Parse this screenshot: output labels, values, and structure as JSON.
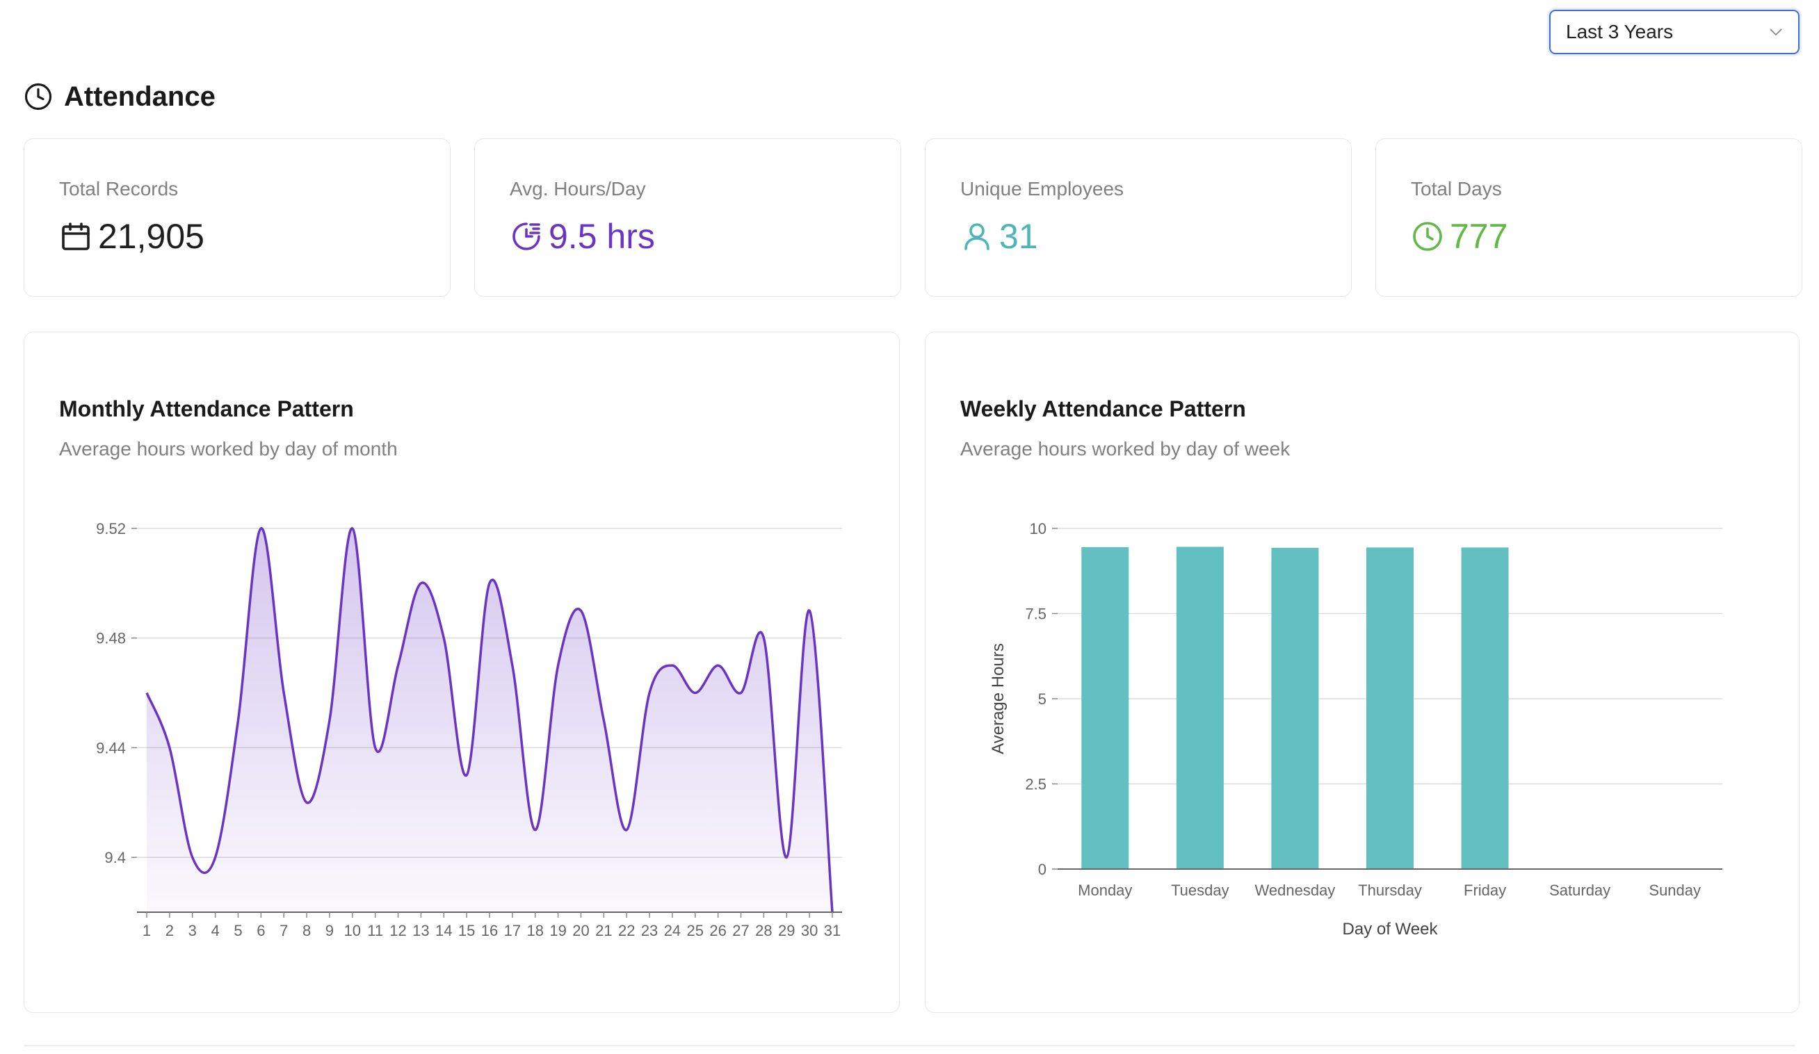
{
  "filter": {
    "selected": "Last 3 Years"
  },
  "page": {
    "title": "Attendance"
  },
  "stats": [
    {
      "label": "Total Records",
      "value": "21,905",
      "icon": "calendar-icon",
      "color": "#1f1f1f"
    },
    {
      "label": "Avg. Hours/Day",
      "value": "9.5 hrs",
      "icon": "clock-chart-icon",
      "color": "#6a35c2"
    },
    {
      "label": "Unique Employees",
      "value": "31",
      "icon": "user-icon",
      "color": "#4bb5b8"
    },
    {
      "label": "Total Days",
      "value": "777",
      "icon": "clock-icon",
      "color": "#63b84a"
    }
  ],
  "monthly": {
    "title": "Monthly Attendance Pattern",
    "subtitle": "Average hours worked by day of month",
    "chart_data": {
      "type": "area",
      "x": [
        1,
        2,
        3,
        4,
        5,
        6,
        7,
        8,
        9,
        10,
        11,
        12,
        13,
        14,
        15,
        16,
        17,
        18,
        19,
        20,
        21,
        22,
        23,
        24,
        25,
        26,
        27,
        28,
        29,
        30,
        31
      ],
      "values": [
        9.46,
        9.44,
        9.4,
        9.4,
        9.45,
        9.52,
        9.46,
        9.42,
        9.45,
        9.52,
        9.44,
        9.47,
        9.5,
        9.48,
        9.43,
        9.5,
        9.47,
        9.41,
        9.47,
        9.49,
        9.45,
        9.41,
        9.46,
        9.47,
        9.46,
        9.47,
        9.46,
        9.48,
        9.4,
        9.49,
        9.38
      ],
      "yticks": [
        9.4,
        9.44,
        9.48,
        9.52
      ],
      "ylim": [
        9.38,
        9.52
      ],
      "grid": true,
      "color": "#6a35c2"
    }
  },
  "weekly": {
    "title": "Weekly Attendance Pattern",
    "subtitle": "Average hours worked by day of week",
    "chart_data": {
      "type": "bar",
      "categories": [
        "Monday",
        "Tuesday",
        "Wednesday",
        "Thursday",
        "Friday",
        "Saturday",
        "Sunday"
      ],
      "values": [
        9.45,
        9.46,
        9.43,
        9.44,
        9.44,
        0,
        0
      ],
      "yticks": [
        "0",
        "2.5",
        "5",
        "7.5",
        "10"
      ],
      "ylim": [
        0,
        10
      ],
      "xlabel": "Day of Week",
      "ylabel": "Average Hours",
      "grid": true,
      "color": "#62c0c1"
    }
  }
}
